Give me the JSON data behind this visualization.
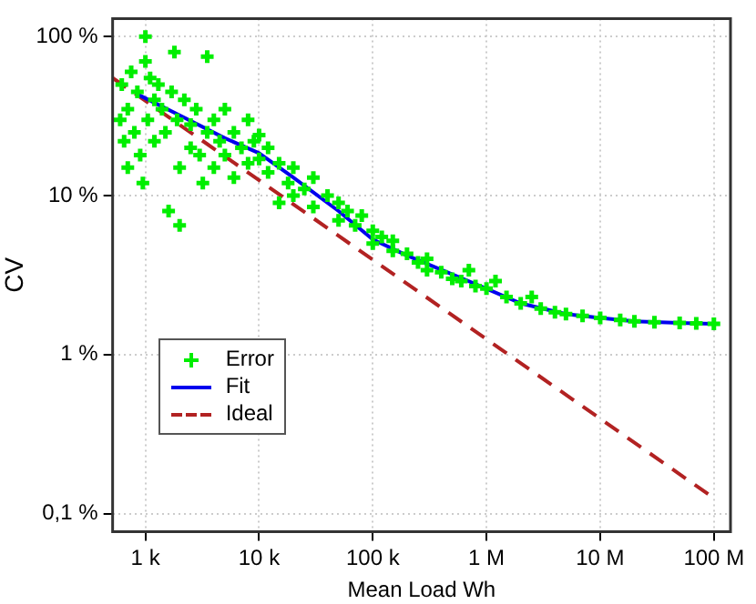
{
  "chart_data": {
    "type": "scatter",
    "xlabel": "Mean Load Wh",
    "ylabel": "CV",
    "log": "xy",
    "grid": true,
    "legend": "left",
    "xlim": [
      515,
      140000000
    ],
    "ylim": [
      0.077,
      130
    ],
    "xticks": [
      {
        "value": 1000,
        "label": "1 k"
      },
      {
        "value": 10000,
        "label": "10 k"
      },
      {
        "value": 100000,
        "label": "100 k"
      },
      {
        "value": 1000000,
        "label": "1 M"
      },
      {
        "value": 10000000,
        "label": "10 M"
      },
      {
        "value": 100000000,
        "label": "100 M"
      }
    ],
    "yticks": [
      {
        "value": 0.1,
        "label": "0,1 %"
      },
      {
        "value": 1,
        "label": "1 %"
      },
      {
        "value": 10,
        "label": "10 %"
      },
      {
        "value": 100,
        "label": "100 %"
      }
    ],
    "series": [
      {
        "name": "Error",
        "type": "scatter",
        "color": "#00ee00",
        "marker": "cross",
        "x": [
          600,
          620,
          650,
          700,
          700,
          750,
          800,
          850,
          900,
          950,
          1000,
          1000,
          1050,
          1100,
          1200,
          1200,
          1300,
          1400,
          1500,
          1600,
          1700,
          1800,
          1900,
          2000,
          2000,
          2200,
          2500,
          2500,
          2800,
          3000,
          3200,
          3500,
          3500,
          4000,
          4000,
          4500,
          5000,
          5000,
          6000,
          6000,
          7000,
          8000,
          8000,
          9000,
          10000,
          10000,
          12000,
          12000,
          15000,
          15000,
          18000,
          20000,
          20000,
          25000,
          30000,
          30000,
          40000,
          50000,
          50000,
          60000,
          70000,
          80000,
          100000,
          100000,
          120000,
          150000,
          150000,
          200000,
          250000,
          300000,
          300000,
          400000,
          500000,
          600000,
          700000,
          800000,
          1000000,
          1200000,
          1500000,
          2000000,
          2500000,
          3000000,
          4000000,
          5000000,
          7000000,
          10000000,
          15000000,
          20000000,
          30000000,
          50000000,
          70000000,
          100000000
        ],
        "values": [
          30,
          50,
          22,
          35,
          15,
          60,
          25,
          45,
          18,
          12,
          100,
          70,
          30,
          55,
          40,
          22,
          50,
          35,
          25,
          8,
          45,
          80,
          30,
          15,
          6.5,
          40,
          28,
          20,
          35,
          18,
          12,
          25,
          75,
          30,
          15,
          22,
          35,
          18,
          25,
          13,
          20,
          30,
          16,
          22,
          17,
          24,
          14,
          20,
          16,
          9,
          12,
          15,
          10,
          11,
          13,
          8.5,
          10,
          9,
          7,
          8,
          6.5,
          7.5,
          6,
          5,
          5.5,
          4.5,
          5.2,
          4.3,
          3.8,
          4,
          3.4,
          3.3,
          3,
          2.9,
          3.4,
          2.7,
          2.6,
          2.9,
          2.3,
          2.1,
          2.3,
          1.95,
          1.85,
          1.8,
          1.75,
          1.7,
          1.65,
          1.62,
          1.6,
          1.58,
          1.57,
          1.56
        ]
      },
      {
        "name": "Fit",
        "type": "line",
        "color": "#0000ee",
        "line_style": "solid",
        "marker": "none",
        "x": [
          875,
          2000,
          5000,
          10000,
          20000,
          50000,
          100000,
          200000,
          500000,
          1000000,
          2000000,
          5000000,
          10000000,
          20000000,
          50000000,
          100000000
        ],
        "values": [
          43,
          32,
          23,
          18.5,
          13,
          8,
          5.3,
          4.2,
          3.2,
          2.6,
          2.1,
          1.8,
          1.7,
          1.62,
          1.58,
          1.56
        ]
      },
      {
        "name": "Ideal",
        "type": "line",
        "color": "#b22222",
        "line_style": "dashed",
        "marker": "none",
        "x": [
          515,
          100000000
        ],
        "values": [
          55,
          0.125
        ]
      }
    ]
  }
}
